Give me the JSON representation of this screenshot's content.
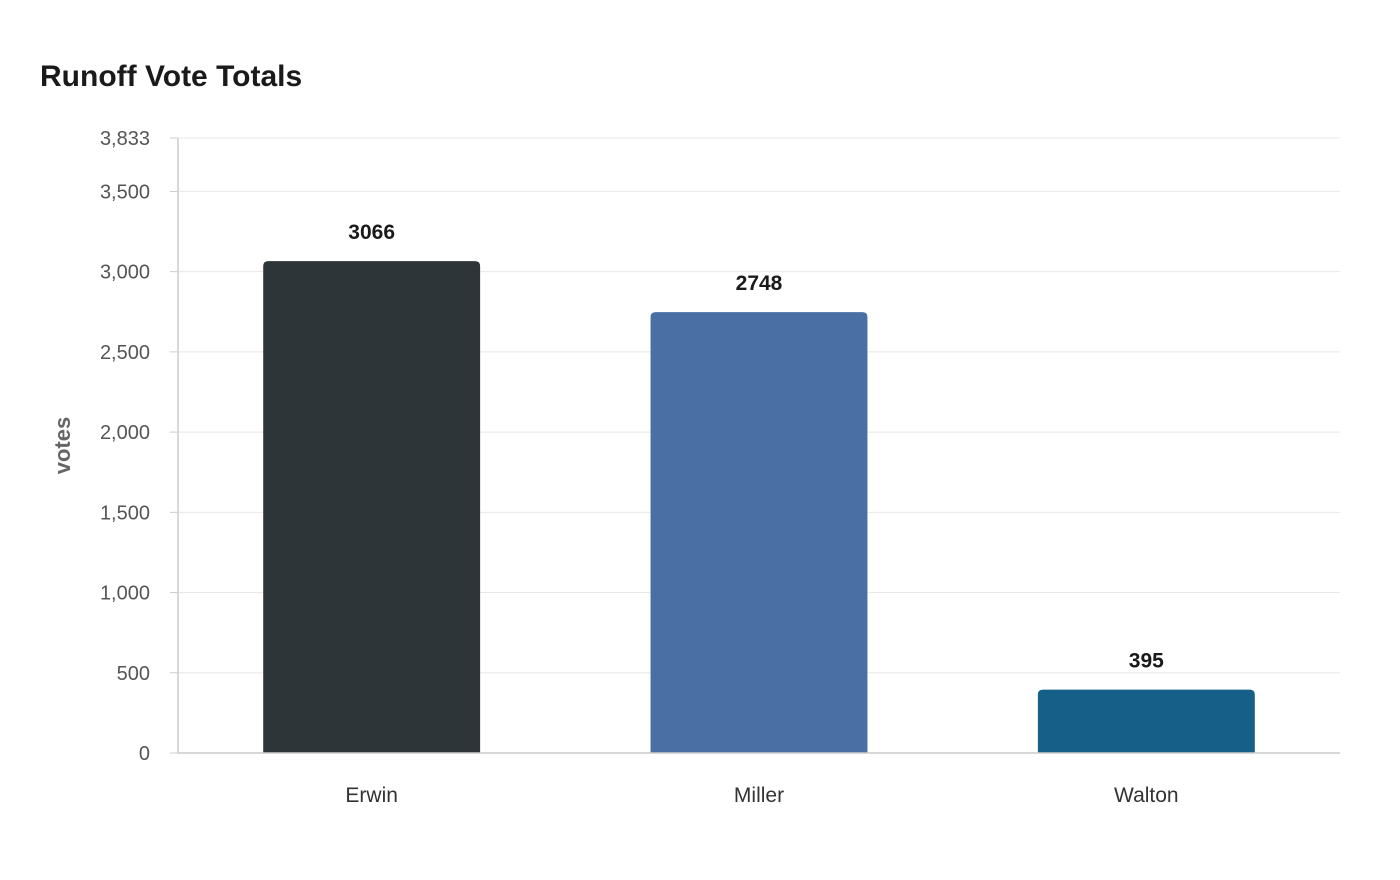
{
  "chart_data": {
    "type": "bar",
    "title": "Runoff Vote Totals",
    "xlabel": "",
    "ylabel": "votes",
    "categories": [
      "Erwin",
      "Miller",
      "Walton"
    ],
    "values": [
      3066,
      2748,
      395
    ],
    "colors": [
      "#2e3538",
      "#4a6fa5",
      "#165f88"
    ],
    "ylim": [
      0,
      3833
    ],
    "yticks": [
      0,
      500,
      1000,
      1500,
      2000,
      2500,
      3000,
      3500,
      3833
    ],
    "ytick_labels": [
      "0",
      "500",
      "1,000",
      "1,500",
      "2,000",
      "2,500",
      "3,000",
      "3,500",
      "3,833"
    ],
    "grid": true,
    "legend": "none"
  }
}
